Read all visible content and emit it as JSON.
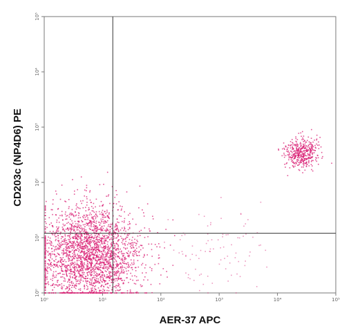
{
  "chart_data": {
    "type": "scatter",
    "plot_style": "flow-cytometry-dot-plot",
    "xlabel": "AER-37 APC",
    "ylabel": "CD203c (NP4D6) PE",
    "x_scale": "log",
    "y_scale": "log",
    "xlim": [
      1,
      100000
    ],
    "ylim": [
      1,
      100000
    ],
    "x_ticks": [
      {
        "value": 1,
        "label": "10⁰"
      },
      {
        "value": 10,
        "label": "10¹"
      },
      {
        "value": 100,
        "label": "10²"
      },
      {
        "value": 1000,
        "label": "10³"
      },
      {
        "value": 10000,
        "label": "10⁴"
      },
      {
        "value": 100000,
        "label": "10⁵"
      }
    ],
    "y_ticks": [
      {
        "value": 1,
        "label": "10⁰"
      },
      {
        "value": 10,
        "label": "10¹"
      },
      {
        "value": 100,
        "label": "10²"
      },
      {
        "value": 1000,
        "label": "10³"
      },
      {
        "value": 10000,
        "label": "10⁴"
      },
      {
        "value": 100000,
        "label": "10⁵"
      }
    ],
    "quadrant_gates": {
      "x": 15,
      "y": 12
    },
    "populations": [
      {
        "id": "double-negative",
        "x_center": 6,
        "y_center": 5,
        "spread_decades": 0.45,
        "relative_density": "high"
      },
      {
        "id": "double-positive",
        "x_center": 25000,
        "y_center": 350,
        "spread_decades": 0.14,
        "relative_density": "medium"
      },
      {
        "id": "sparse",
        "x_center": 800,
        "y_center": 6,
        "spread_decades": 0.4,
        "relative_density": "low"
      }
    ],
    "dot_color": "#d81b72",
    "grid": false,
    "legend": "none"
  }
}
